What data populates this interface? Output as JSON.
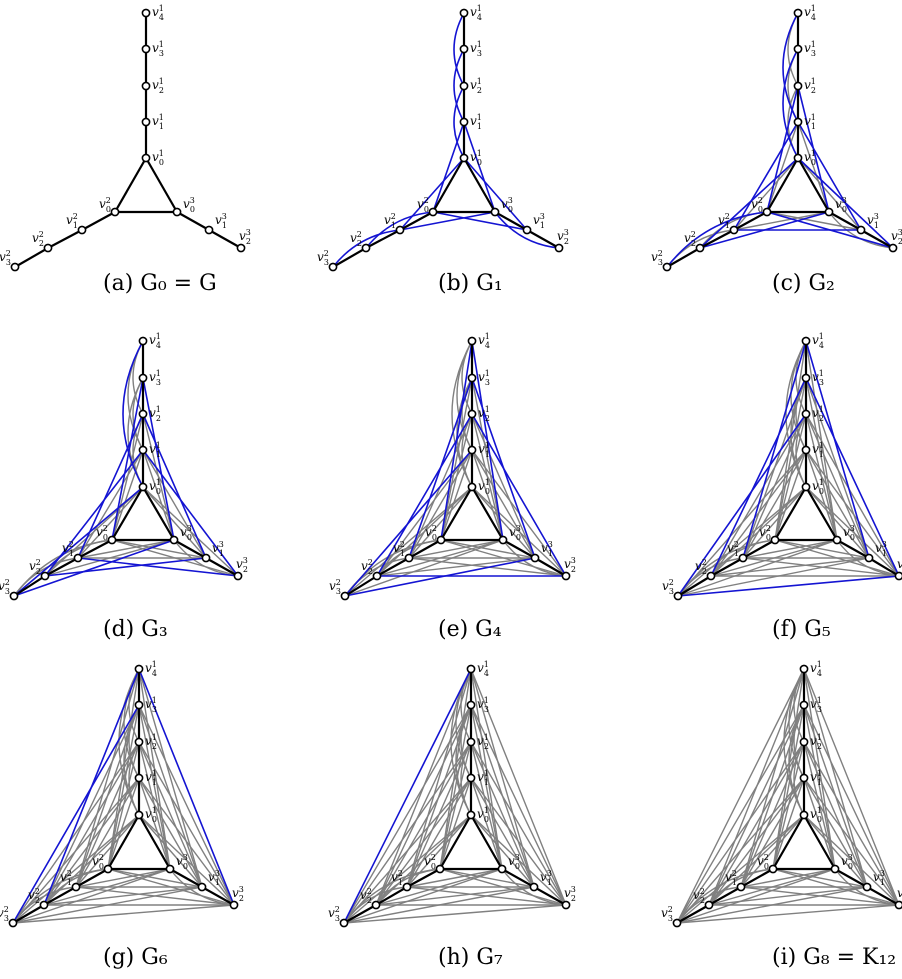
{
  "figure": {
    "colors": {
      "tree_edge": "#000000",
      "new_edge": "#1414d2",
      "old_edge": "#808080",
      "vertex_fill": "#ffffff"
    },
    "vertex_labels": {
      "a0": "v",
      "a0_sup": "1",
      "a0_sub": "0",
      "a1": "v",
      "a1_sup": "1",
      "a1_sub": "1",
      "a2": "v",
      "a2_sup": "1",
      "a2_sub": "2",
      "a3": "v",
      "a3_sup": "1",
      "a3_sub": "3",
      "a4": "v",
      "a4_sup": "1",
      "a4_sub": "4",
      "b0": "v",
      "b0_sup": "2",
      "b0_sub": "0",
      "b1": "v",
      "b1_sup": "2",
      "b1_sub": "1",
      "b2": "v",
      "b2_sup": "2",
      "b2_sub": "2",
      "b3": "v",
      "b3_sup": "2",
      "b3_sub": "3",
      "c0": "v",
      "c0_sup": "3",
      "c0_sub": "0",
      "c1": "v",
      "c1_sup": "3",
      "c1_sub": "1",
      "c2": "v",
      "c2_sup": "3",
      "c2_sub": "2"
    },
    "panels": [
      {
        "id": "a",
        "caption": "(a)  G₀ = G",
        "new": [],
        "old_count": 0
      },
      {
        "id": "b",
        "caption": "(b)  G₁",
        "new_desc": "distance-2 edges on branches",
        "old_count": 0
      },
      {
        "id": "c",
        "caption": "(c)  G₂",
        "old_count": 1
      },
      {
        "id": "d",
        "caption": "(d)  G₃",
        "old_count": 2
      },
      {
        "id": "e",
        "caption": "(e)  G₄",
        "old_count": 3
      },
      {
        "id": "f",
        "caption": "(f)  G₅",
        "old_count": 4
      },
      {
        "id": "g",
        "caption": "(g)  G₆",
        "old_count": 5
      },
      {
        "id": "h",
        "caption": "(h)  G₇",
        "old_count": 6
      },
      {
        "id": "i",
        "caption": "(i)  G₈ = K₁₂",
        "old_count": 7
      }
    ]
  }
}
